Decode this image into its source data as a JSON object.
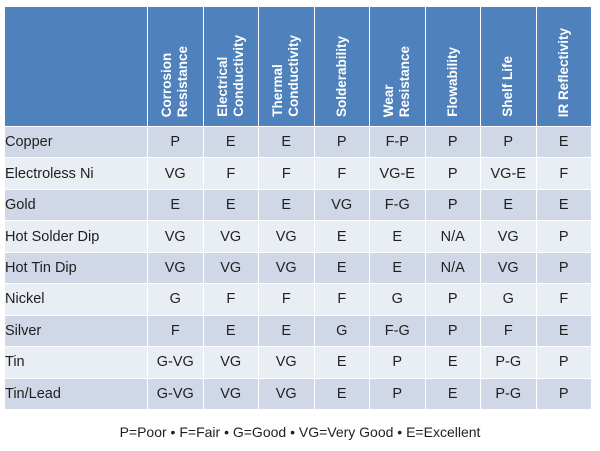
{
  "columns": [
    "Corrosion\nResistance",
    "Electrical\nConductivity",
    "Thermal\nConductivity",
    "Solderability",
    "Wear\nResistance",
    "Flowability",
    "Shelf Life",
    "IR Reflectivity"
  ],
  "rows": [
    {
      "name": "Copper",
      "values": [
        "P",
        "E",
        "E",
        "P",
        "F-P",
        "P",
        "P",
        "E"
      ]
    },
    {
      "name": "Electroless Ni",
      "values": [
        "VG",
        "F",
        "F",
        "F",
        "VG-E",
        "P",
        "VG-E",
        "F"
      ]
    },
    {
      "name": "Gold",
      "values": [
        "E",
        "E",
        "E",
        "VG",
        "F-G",
        "P",
        "E",
        "E"
      ]
    },
    {
      "name": "Hot Solder Dip",
      "values": [
        "VG",
        "VG",
        "VG",
        "E",
        "E",
        "N/A",
        "VG",
        "P"
      ]
    },
    {
      "name": "Hot Tin Dip",
      "values": [
        "VG",
        "VG",
        "VG",
        "E",
        "E",
        "N/A",
        "VG",
        "P"
      ]
    },
    {
      "name": "Nickel",
      "values": [
        "G",
        "F",
        "F",
        "F",
        "G",
        "P",
        "G",
        "F"
      ]
    },
    {
      "name": "Silver",
      "values": [
        "F",
        "E",
        "E",
        "G",
        "F-G",
        "P",
        "F",
        "E"
      ]
    },
    {
      "name": "Tin",
      "values": [
        "G-VG",
        "VG",
        "VG",
        "E",
        "P",
        "E",
        "P-G",
        "P"
      ]
    },
    {
      "name": "Tin/Lead",
      "values": [
        "G-VG",
        "VG",
        "VG",
        "E",
        "P",
        "E",
        "P-G",
        "P"
      ]
    }
  ],
  "legend": "P=Poor  •  F=Fair  •  G=Good  •  VG=Very Good  •  E=Excellent",
  "colors": {
    "header": "#4f81bd",
    "row_dark": "#d0d8e8",
    "row_light": "#e9edf4"
  }
}
